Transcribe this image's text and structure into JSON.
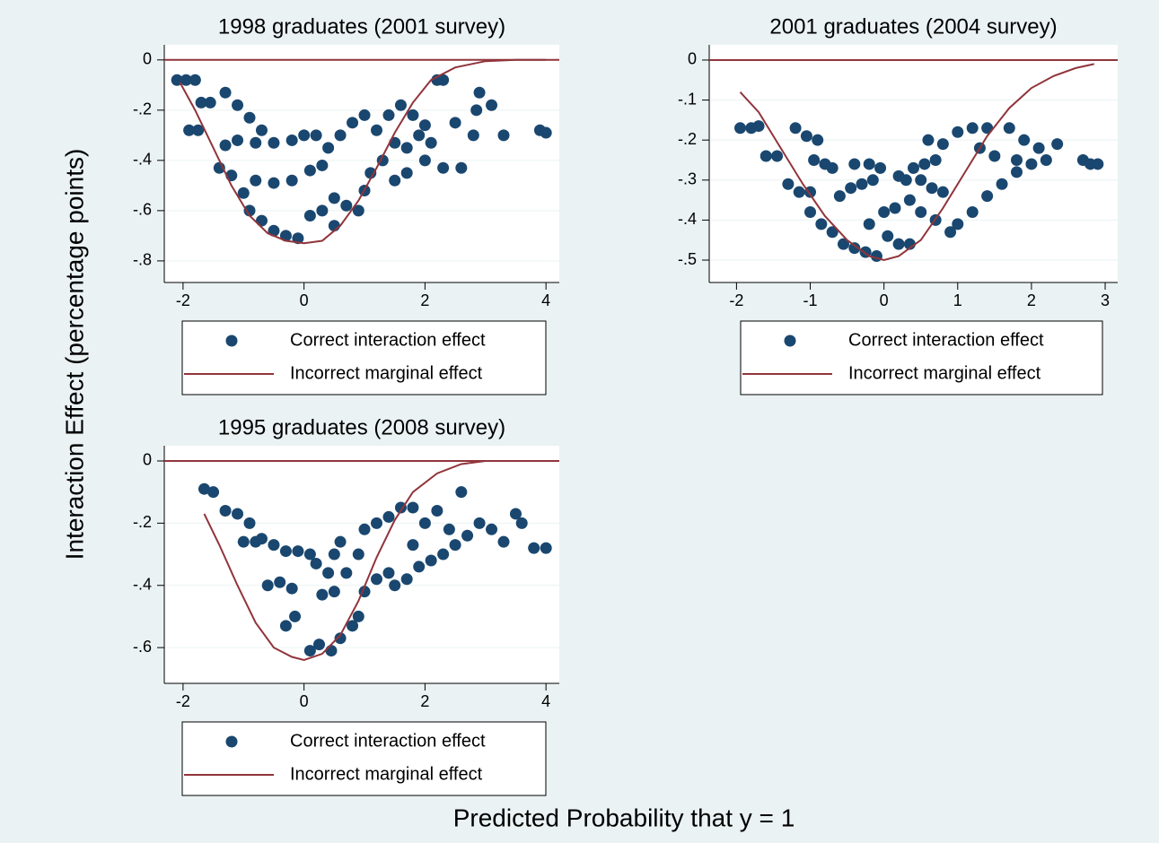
{
  "ylabel": "Interaction Effect (percentage points)",
  "xlabel": "Predicted Probability that y = 1",
  "chart_data": [
    {
      "type": "scatter",
      "title": "1998 graduates (2001 survey)",
      "xlim": [
        -2.31,
        4.22
      ],
      "ylim": [
        -0.886,
        0.06
      ],
      "xticks": [
        -2,
        0,
        2,
        4
      ],
      "yticks": [
        0,
        {
          "value": -0.2,
          "label": "-.2"
        },
        {
          "value": -0.4,
          "label": "-.4"
        },
        {
          "value": -0.6,
          "label": "-.6"
        },
        {
          "value": -0.8,
          "label": "-.8"
        }
      ],
      "yline": 0,
      "grid": true,
      "series": [
        {
          "name": "Correct interaction effect",
          "mark": "scatter",
          "color": "#1a476f",
          "x": [
            -2.1,
            -1.95,
            -1.8,
            -1.9,
            -1.75,
            -1.7,
            -1.55,
            -1.3,
            -1.1,
            -0.9,
            -0.7,
            -1.3,
            -1.1,
            -0.8,
            -0.5,
            -0.2,
            -1.4,
            -1.2,
            -0.8,
            -0.5,
            -0.2,
            0.1,
            0.3,
            -1.0,
            -0.9,
            -0.7,
            -0.5,
            -0.3,
            -0.1,
            0,
            0.2,
            0.4,
            0.6,
            0.8,
            1.0,
            0.1,
            0.3,
            0.5,
            0.5,
            0.7,
            0.9,
            1.0,
            1.1,
            1.3,
            1.5,
            1.7,
            1.9,
            2.1,
            1.2,
            1.4,
            1.6,
            1.8,
            2.0,
            2.2,
            2.3,
            1.5,
            1.7,
            2.0,
            2.3,
            2.5,
            2.8,
            2.6,
            2.85,
            3.1,
            3.3,
            2.9,
            3.9,
            4.0
          ],
          "values": [
            -0.08,
            -0.08,
            -0.08,
            -0.28,
            -0.28,
            -0.17,
            -0.17,
            -0.13,
            -0.18,
            -0.23,
            -0.28,
            -0.34,
            -0.32,
            -0.33,
            -0.33,
            -0.32,
            -0.43,
            -0.46,
            -0.48,
            -0.49,
            -0.48,
            -0.44,
            -0.42,
            -0.53,
            -0.6,
            -0.64,
            -0.68,
            -0.7,
            -0.71,
            -0.3,
            -0.3,
            -0.35,
            -0.3,
            -0.25,
            -0.22,
            -0.62,
            -0.6,
            -0.66,
            -0.55,
            -0.58,
            -0.6,
            -0.52,
            -0.45,
            -0.4,
            -0.33,
            -0.35,
            -0.3,
            -0.33,
            -0.28,
            -0.22,
            -0.18,
            -0.22,
            -0.26,
            -0.08,
            -0.08,
            -0.48,
            -0.45,
            -0.4,
            -0.43,
            -0.25,
            -0.3,
            -0.43,
            -0.2,
            -0.18,
            -0.3,
            -0.13,
            -0.28,
            -0.29
          ]
        },
        {
          "name": "Incorrect marginal effect",
          "mark": "line",
          "color": "#90353b",
          "x": [
            -2.05,
            -1.8,
            -1.5,
            -1.2,
            -0.9,
            -0.6,
            -0.3,
            0,
            0.3,
            0.6,
            0.9,
            1.2,
            1.5,
            1.8,
            2.1,
            2.5,
            3,
            3.5,
            4
          ],
          "values": [
            -0.09,
            -0.2,
            -0.35,
            -0.5,
            -0.62,
            -0.69,
            -0.72,
            -0.73,
            -0.72,
            -0.66,
            -0.56,
            -0.43,
            -0.29,
            -0.17,
            -0.08,
            -0.03,
            -0.005,
            0,
            0
          ]
        }
      ]
    },
    {
      "type": "scatter",
      "title": "2001 graduates (2004 survey)",
      "xlim": [
        -2.37,
        3.17
      ],
      "ylim": [
        -0.556,
        0.038
      ],
      "xticks": [
        -2,
        -1,
        0,
        1,
        2,
        3
      ],
      "yticks": [
        0,
        {
          "value": -0.1,
          "label": "-.1"
        },
        {
          "value": -0.2,
          "label": "-.2"
        },
        {
          "value": -0.3,
          "label": "-.3"
        },
        {
          "value": -0.4,
          "label": "-.4"
        },
        {
          "value": -0.5,
          "label": "-.5"
        }
      ],
      "yline": 0,
      "grid": true,
      "series": [
        {
          "name": "Correct interaction effect",
          "mark": "scatter",
          "color": "#1a476f",
          "x": [
            -1.95,
            -1.8,
            -1.7,
            -1.6,
            -1.45,
            -1.3,
            -1.15,
            -1.0,
            -1.2,
            -1.05,
            -0.9,
            -0.95,
            -0.8,
            -0.7,
            -1.0,
            -0.85,
            -0.7,
            -0.55,
            -0.4,
            -0.25,
            -0.1,
            -0.6,
            -0.45,
            -0.3,
            -0.15,
            -0.4,
            -0.2,
            -0.05,
            0.05,
            0.2,
            0.35,
            -0.2,
            0.0,
            0.15,
            0.35,
            0.2,
            0.4,
            0.55,
            0.7,
            0.5,
            0.7,
            0.3,
            0.5,
            0.65,
            0.8,
            0.6,
            0.8,
            1.0,
            1.2,
            0.9,
            1.0,
            1.2,
            1.4,
            1.6,
            1.8,
            1.3,
            1.5,
            1.7,
            1.9,
            2.1,
            1.4,
            1.8,
            2.0,
            2.2,
            2.35,
            2.7,
            2.8,
            2.9
          ],
          "values": [
            -0.17,
            -0.17,
            -0.165,
            -0.24,
            -0.24,
            -0.31,
            -0.33,
            -0.33,
            -0.17,
            -0.19,
            -0.2,
            -0.25,
            -0.26,
            -0.27,
            -0.38,
            -0.41,
            -0.43,
            -0.46,
            -0.47,
            -0.48,
            -0.49,
            -0.34,
            -0.32,
            -0.31,
            -0.3,
            -0.26,
            -0.26,
            -0.27,
            -0.44,
            -0.46,
            -0.46,
            -0.41,
            -0.38,
            -0.37,
            -0.35,
            -0.29,
            -0.27,
            -0.26,
            -0.25,
            -0.38,
            -0.4,
            -0.3,
            -0.3,
            -0.32,
            -0.33,
            -0.2,
            -0.21,
            -0.18,
            -0.17,
            -0.43,
            -0.41,
            -0.38,
            -0.34,
            -0.31,
            -0.28,
            -0.22,
            -0.24,
            -0.17,
            -0.2,
            -0.22,
            -0.17,
            -0.25,
            -0.26,
            -0.25,
            -0.21,
            -0.25,
            -0.26,
            -0.26
          ]
        },
        {
          "name": "Incorrect marginal effect",
          "mark": "line",
          "color": "#90353b",
          "x": [
            -1.95,
            -1.7,
            -1.4,
            -1.1,
            -0.8,
            -0.5,
            -0.2,
            0,
            0.2,
            0.5,
            0.8,
            1.1,
            1.4,
            1.7,
            2.0,
            2.3,
            2.6,
            2.85
          ],
          "values": [
            -0.08,
            -0.13,
            -0.22,
            -0.31,
            -0.39,
            -0.45,
            -0.49,
            -0.5,
            -0.49,
            -0.45,
            -0.37,
            -0.28,
            -0.19,
            -0.12,
            -0.07,
            -0.04,
            -0.02,
            -0.01
          ]
        }
      ]
    },
    {
      "type": "scatter",
      "title": "1995 graduates (2008 survey)",
      "xlim": [
        -2.31,
        4.22
      ],
      "ylim": [
        -0.715,
        0.049
      ],
      "xticks": [
        -2,
        0,
        2,
        4
      ],
      "yticks": [
        0,
        {
          "value": -0.2,
          "label": "-.2"
        },
        {
          "value": -0.4,
          "label": "-.4"
        },
        {
          "value": -0.6,
          "label": "-.6"
        }
      ],
      "yline": 0,
      "grid": true,
      "series": [
        {
          "name": "Correct interaction effect",
          "mark": "scatter",
          "color": "#1a476f",
          "x": [
            -1.65,
            -1.5,
            -1.3,
            -1.1,
            -0.9,
            -0.7,
            -0.5,
            -0.3,
            -0.1,
            0.1,
            -1.0,
            -0.8,
            -0.6,
            -0.4,
            -0.2,
            -0.3,
            -0.15,
            0.1,
            0.25,
            0.45,
            0.6,
            0.8,
            0.9,
            0.2,
            0.4,
            0.5,
            0.6,
            0.3,
            0.5,
            0.7,
            0.9,
            1.0,
            1.2,
            1.4,
            1.0,
            1.2,
            1.4,
            1.6,
            1.5,
            1.7,
            1.9,
            2.1,
            1.8,
            1.8,
            2.0,
            2.2,
            2.3,
            2.5,
            2.4,
            2.6,
            2.7,
            2.9,
            3.1,
            3.3,
            3.5,
            3.6,
            3.8,
            4.0
          ],
          "values": [
            -0.09,
            -0.1,
            -0.16,
            -0.17,
            -0.2,
            -0.25,
            -0.27,
            -0.29,
            -0.29,
            -0.3,
            -0.26,
            -0.26,
            -0.4,
            -0.39,
            -0.41,
            -0.53,
            -0.5,
            -0.61,
            -0.59,
            -0.61,
            -0.57,
            -0.53,
            -0.5,
            -0.33,
            -0.36,
            -0.3,
            -0.26,
            -0.43,
            -0.42,
            -0.36,
            -0.3,
            -0.42,
            -0.38,
            -0.36,
            -0.22,
            -0.2,
            -0.18,
            -0.15,
            -0.4,
            -0.38,
            -0.34,
            -0.32,
            -0.27,
            -0.15,
            -0.2,
            -0.16,
            -0.3,
            -0.27,
            -0.22,
            -0.1,
            -0.24,
            -0.2,
            -0.22,
            -0.26,
            -0.17,
            -0.2,
            -0.28,
            -0.28
          ]
        },
        {
          "name": "Incorrect marginal effect",
          "mark": "line",
          "color": "#90353b",
          "x": [
            -1.65,
            -1.4,
            -1.1,
            -0.8,
            -0.5,
            -0.2,
            0,
            0.3,
            0.6,
            0.9,
            1.2,
            1.5,
            1.8,
            2.2,
            2.6,
            3.0,
            3.5,
            4.0
          ],
          "values": [
            -0.17,
            -0.27,
            -0.4,
            -0.52,
            -0.6,
            -0.63,
            -0.64,
            -0.62,
            -0.56,
            -0.45,
            -0.31,
            -0.19,
            -0.1,
            -0.04,
            -0.01,
            0,
            0,
            0
          ]
        }
      ]
    }
  ]
}
